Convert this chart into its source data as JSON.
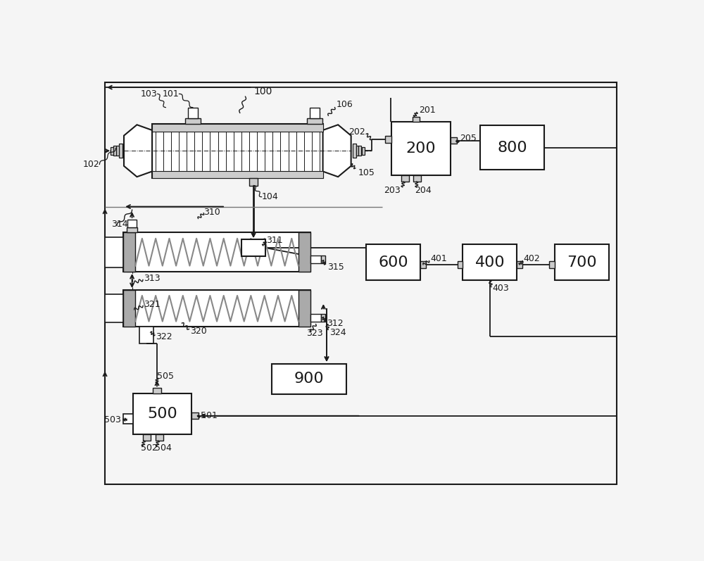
{
  "bg": "#f5f5f5",
  "lc": "#1a1a1a",
  "white": "#ffffff",
  "gray1": "#aaaaaa",
  "gray2": "#cccccc",
  "gray3": "#888888"
}
